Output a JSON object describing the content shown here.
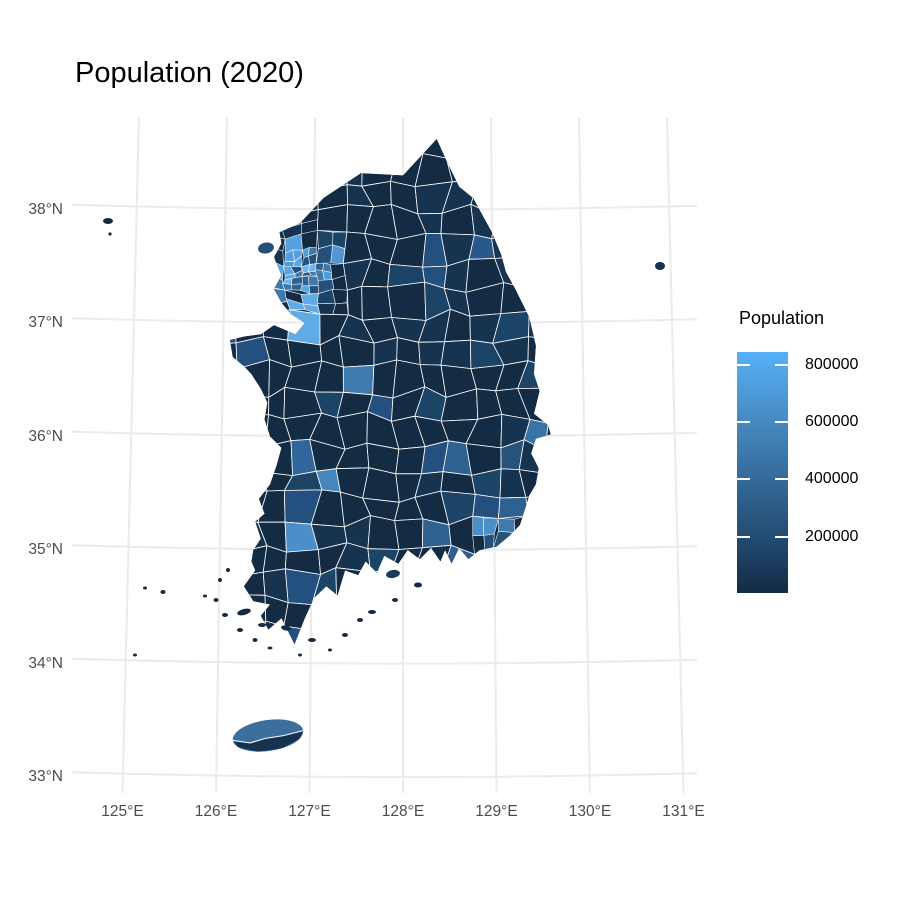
{
  "title": "Population (2020)",
  "legend": {
    "title": "Population",
    "tick_labels": [
      "800000",
      "600000",
      "400000",
      "200000"
    ]
  },
  "axes": {
    "x_labels": [
      "125°E",
      "126°E",
      "127°E",
      "128°E",
      "129°E",
      "130°E",
      "131°E"
    ],
    "y_labels": [
      "38°N",
      "37°N",
      "36°N",
      "35°N",
      "34°N",
      "33°N"
    ]
  },
  "colors": {
    "fill_low": "#132B43",
    "fill_high": "#56B1F7",
    "district_border": "#FFFFFF",
    "grid": "#EBEBEB",
    "axis_text": "#4D4D4D",
    "title_text": "#000000",
    "legend_text": "#000000",
    "background": "#FFFFFF"
  },
  "chart_data": {
    "type": "choropleth_map",
    "region": "South Korea, district (si-gun-gu) level",
    "title": "Population (2020)",
    "colorbar": {
      "label": "Population",
      "tick_values": [
        800000,
        600000,
        400000,
        200000
      ],
      "approx_domain": [
        5000,
        840000
      ],
      "scale_low_color": "#132B43",
      "scale_high_color": "#56B1F7"
    },
    "x_axis": {
      "ticks": [
        "125°E",
        "126°E",
        "127°E",
        "128°E",
        "129°E",
        "130°E",
        "131°E"
      ]
    },
    "y_axis": {
      "ticks": [
        "38°N",
        "37°N",
        "36°N",
        "35°N",
        "34°N",
        "33°N"
      ]
    },
    "legend_position": "right",
    "grid": "on",
    "notes": "Dark navy = low population districts; light blue = high population (Seoul metro area, Suwon/Hwaseong, Gimhae, Daegu, Cheongju, Gumi, Jeonju, Gwangju clusters lighter)."
  }
}
